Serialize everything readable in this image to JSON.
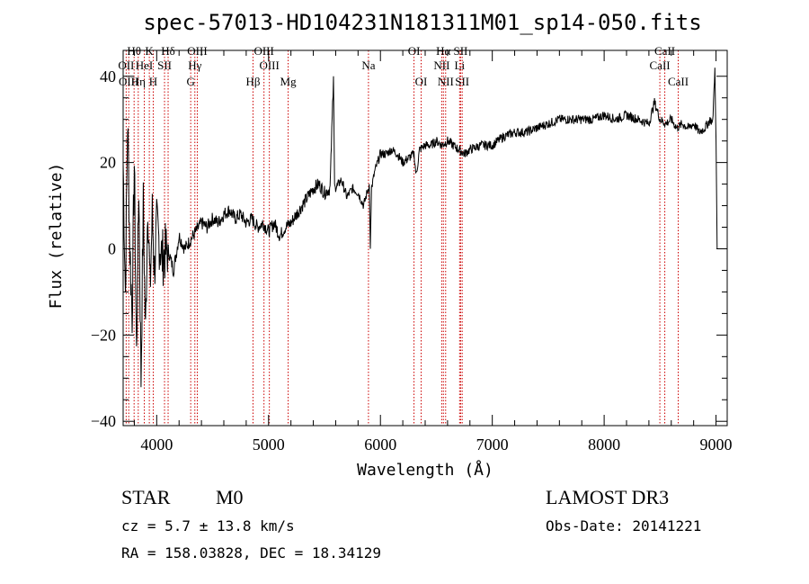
{
  "chart_data": {
    "type": "line",
    "title": "spec-57013-HD104231N181311M01_sp14-050.fits",
    "xlabel": "Wavelength (Å)",
    "ylabel": "Flux (relative)",
    "xlim": [
      3700,
      9100
    ],
    "ylim": [
      -41,
      46
    ],
    "x_ticks": [
      4000,
      5000,
      6000,
      7000,
      8000,
      9000
    ],
    "x_tick_labels": [
      "4000",
      "5000",
      "6000",
      "7000",
      "8000",
      "9000"
    ],
    "y_ticks": [
      -40,
      -20,
      0,
      20,
      40
    ],
    "y_tick_labels": [
      "−40",
      "−20",
      "0",
      "20",
      "40"
    ],
    "series": [
      {
        "name": "spectrum",
        "x": [
          3700,
          3720,
          3740,
          3760,
          3780,
          3800,
          3820,
          3840,
          3860,
          3880,
          3900,
          3920,
          3940,
          3960,
          3980,
          4000,
          4050,
          4100,
          4150,
          4200,
          4250,
          4300,
          4350,
          4400,
          4450,
          4500,
          4550,
          4600,
          4650,
          4700,
          4750,
          4800,
          4850,
          4900,
          4950,
          5000,
          5050,
          5100,
          5150,
          5200,
          5250,
          5300,
          5350,
          5400,
          5450,
          5500,
          5550,
          5580,
          5590,
          5600,
          5650,
          5700,
          5750,
          5800,
          5850,
          5900,
          5910,
          5920,
          5950,
          6000,
          6050,
          6100,
          6150,
          6200,
          6250,
          6300,
          6320,
          6350,
          6400,
          6450,
          6500,
          6550,
          6600,
          6650,
          6700,
          6750,
          6800,
          6900,
          7000,
          7100,
          7200,
          7300,
          7400,
          7500,
          7600,
          7700,
          7800,
          7900,
          8000,
          8100,
          8200,
          8300,
          8400,
          8450,
          8500,
          8550,
          8600,
          8650,
          8700,
          8750,
          8800,
          8850,
          8900,
          8950,
          8970,
          8990,
          9000,
          9010
        ],
        "y": [
          20,
          -10,
          30,
          0,
          -15,
          20,
          -25,
          15,
          -30,
          10,
          -20,
          12,
          -10,
          8,
          -5,
          5,
          -2,
          0,
          -5,
          3,
          0,
          2,
          4,
          6,
          5,
          7,
          6,
          8,
          9,
          7,
          8,
          6,
          7,
          5,
          6,
          4,
          6,
          3,
          5,
          6,
          8,
          10,
          12,
          14,
          15,
          13,
          14,
          40,
          15,
          14,
          16,
          12,
          14,
          13,
          10,
          15,
          0,
          14,
          18,
          22,
          22,
          23,
          22,
          20,
          21,
          22,
          17,
          23,
          24,
          24,
          25,
          24,
          25,
          24,
          23,
          22,
          23,
          24,
          24,
          26,
          27,
          27,
          28,
          29,
          30,
          30,
          30,
          30,
          31,
          30,
          31,
          30,
          29,
          34,
          30,
          29,
          30,
          28,
          29,
          28,
          29,
          27,
          28,
          30,
          29,
          42,
          25,
          0
        ]
      }
    ],
    "spectral_lines": [
      {
        "label": "Hθ",
        "x": 3798,
        "row": 1
      },
      {
        "label": "OII",
        "x": 3727,
        "row": 2
      },
      {
        "label": "OIII",
        "x": 3750,
        "row": 3
      },
      {
        "label": "K",
        "x": 3934,
        "row": 1
      },
      {
        "label": "HeI",
        "x": 3889,
        "row": 2
      },
      {
        "label": "Hη",
        "x": 3835,
        "row": 3
      },
      {
        "label": "Hδ",
        "x": 4102,
        "row": 1
      },
      {
        "label": "SII",
        "x": 4070,
        "row": 2
      },
      {
        "label": "H",
        "x": 3969,
        "row": 3
      },
      {
        "label": "OIII",
        "x": 4363,
        "row": 1
      },
      {
        "label": "Hγ",
        "x": 4341,
        "row": 2
      },
      {
        "label": "G",
        "x": 4304,
        "row": 3
      },
      {
        "label": "OIII",
        "x": 4959,
        "row": 1
      },
      {
        "label": "OIII",
        "x": 5007,
        "row": 2
      },
      {
        "label": "Hβ",
        "x": 4861,
        "row": 3
      },
      {
        "label": "Mg",
        "x": 5175,
        "row": 3
      },
      {
        "label": "Na",
        "x": 5893,
        "row": 2
      },
      {
        "label": "OI",
        "x": 6300,
        "row": 1
      },
      {
        "label": "OI",
        "x": 6364,
        "row": 3
      },
      {
        "label": "Hα",
        "x": 6563,
        "row": 1
      },
      {
        "label": "NII",
        "x": 6548,
        "row": 2
      },
      {
        "label": "NII",
        "x": 6583,
        "row": 3
      },
      {
        "label": "SII",
        "x": 6717,
        "row": 1
      },
      {
        "label": "Li",
        "x": 6708,
        "row": 2
      },
      {
        "label": "SII",
        "x": 6731,
        "row": 3
      },
      {
        "label": "CaII",
        "x": 8542,
        "row": 1
      },
      {
        "label": "CaII",
        "x": 8498,
        "row": 2
      },
      {
        "label": "CaII",
        "x": 8662,
        "row": 3
      }
    ],
    "line_color": "#cc0000"
  },
  "info": {
    "class": "STAR",
    "subclass": "M0",
    "survey": "LAMOST DR3",
    "cz": "cz = 5.7 ± 13.8 km/s",
    "obs_date": "Obs-Date: 20141221",
    "radec": "RA = 158.03828, DEC =  18.34129"
  }
}
